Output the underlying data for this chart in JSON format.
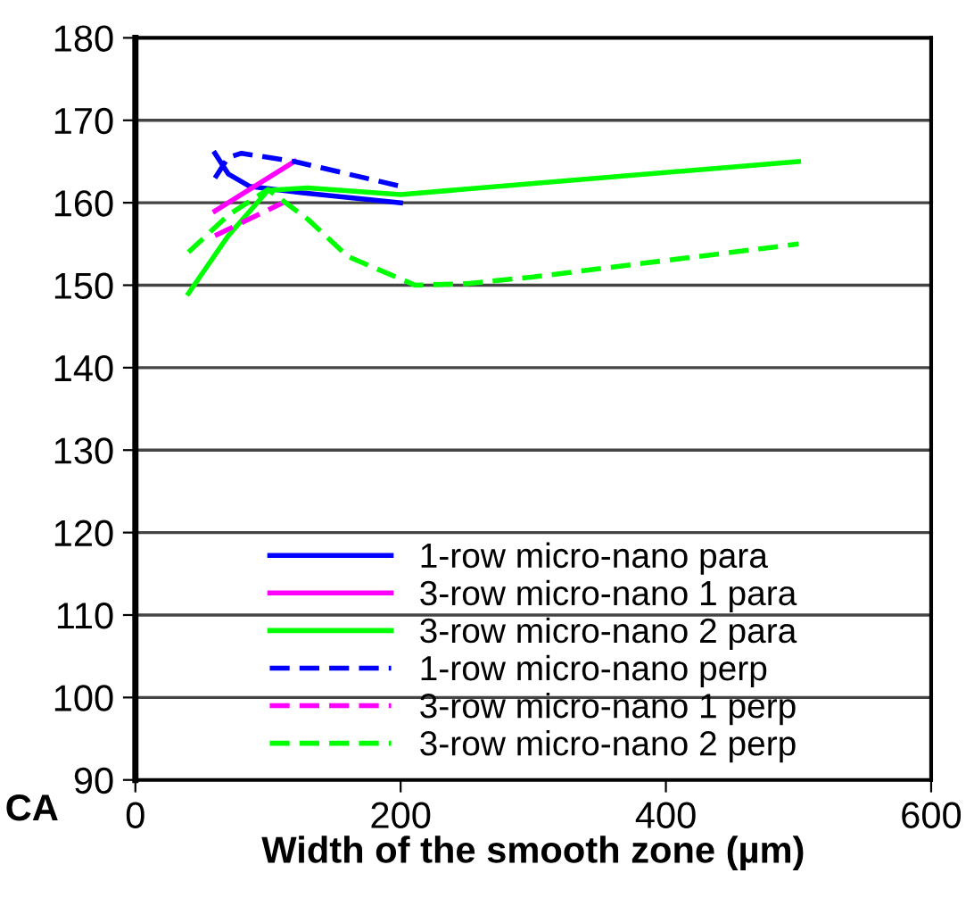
{
  "chart_data": {
    "type": "line",
    "xlabel": "Width of the smooth zone (µm)",
    "ylabel": "CA",
    "xlim": [
      0,
      600
    ],
    "xticks": [
      0,
      200,
      400,
      600
    ],
    "ylim": [
      90,
      180
    ],
    "yticks": [
      90,
      100,
      110,
      120,
      130,
      140,
      150,
      160,
      170,
      180
    ],
    "grid": "y",
    "legend": "bottom",
    "series": [
      {
        "name": "1-row micro-nano para",
        "color": "#0000ff",
        "line_style": "solid",
        "x": [
          60,
          70,
          86,
          126,
          200
        ],
        "values": [
          166,
          163.5,
          162,
          161.2,
          160
        ]
      },
      {
        "name": "3-row micro-nano 1 para",
        "color": "#ff00ff",
        "line_style": "solid",
        "x": [
          60,
          120
        ],
        "values": [
          159,
          165
        ]
      },
      {
        "name": "3-row micro-nano 2 para",
        "color": "#00ff00",
        "line_style": "solid",
        "x": [
          40,
          70,
          100,
          130,
          200,
          500
        ],
        "values": [
          149,
          156,
          161.5,
          161.8,
          161,
          165
        ]
      },
      {
        "name": "1-row micro-nano perp",
        "color": "#0000ff",
        "line_style": "dashed",
        "x": [
          60,
          70,
          80,
          120,
          200
        ],
        "values": [
          163,
          165.5,
          166,
          165,
          162
        ]
      },
      {
        "name": "3-row micro-nano 1 perp",
        "color": "#ff00ff",
        "line_style": "dashed",
        "x": [
          60,
          115
        ],
        "values": [
          156,
          160.3
        ]
      },
      {
        "name": "3-row micro-nano 2 perp",
        "color": "#00ff00",
        "line_style": "dashed",
        "x": [
          40,
          70,
          100,
          130,
          160,
          211,
          250,
          300,
          400,
          500
        ],
        "values": [
          154,
          158.5,
          161.6,
          158,
          153.5,
          150,
          150.2,
          151,
          153,
          155
        ]
      }
    ]
  }
}
